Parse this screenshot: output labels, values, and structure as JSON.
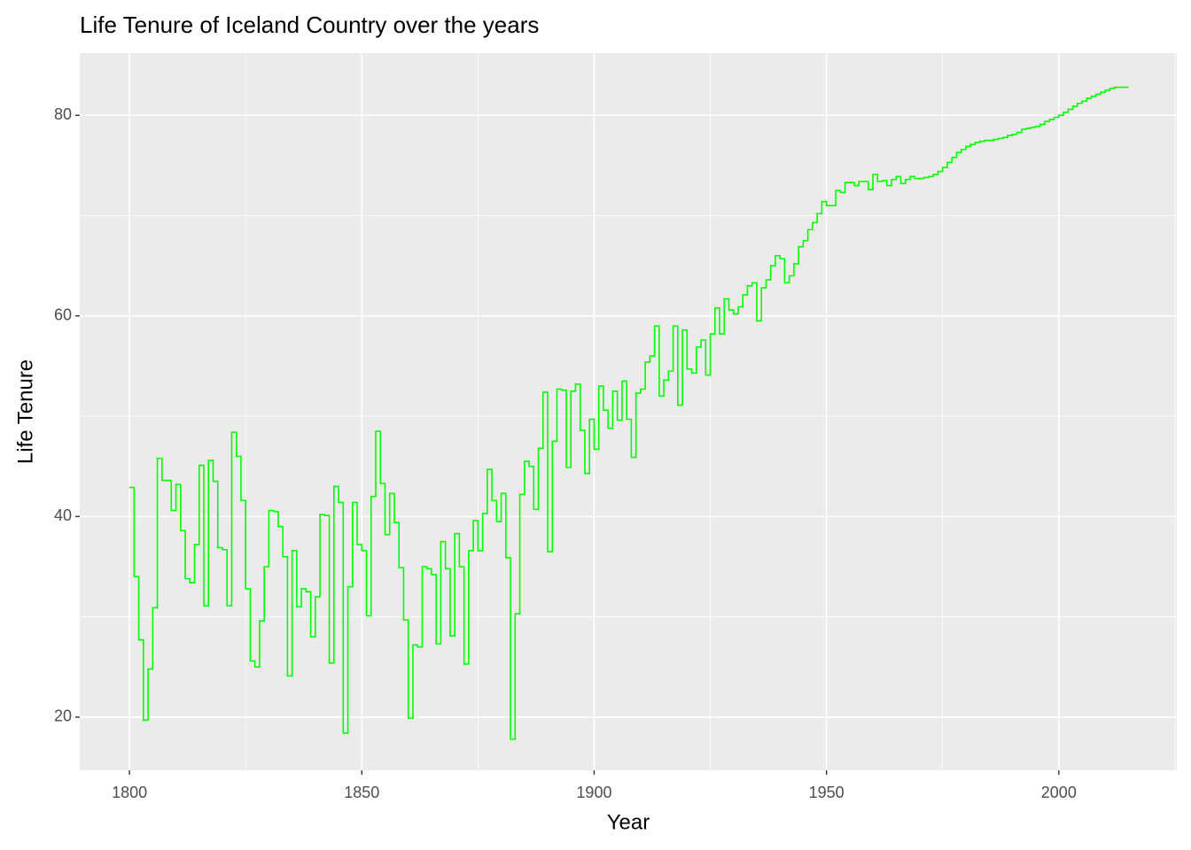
{
  "chart_data": {
    "type": "step",
    "title": "Life Tenure of Iceland Country over the years",
    "x_label": "Year",
    "y_label": "Life Tenure",
    "x": [
      1800,
      1801,
      1802,
      1803,
      1804,
      1805,
      1806,
      1807,
      1808,
      1809,
      1810,
      1811,
      1812,
      1813,
      1814,
      1815,
      1816,
      1817,
      1818,
      1819,
      1820,
      1821,
      1822,
      1823,
      1824,
      1825,
      1826,
      1827,
      1828,
      1829,
      1830,
      1831,
      1832,
      1833,
      1834,
      1835,
      1836,
      1837,
      1838,
      1839,
      1840,
      1841,
      1842,
      1843,
      1844,
      1845,
      1846,
      1847,
      1848,
      1849,
      1850,
      1851,
      1852,
      1853,
      1854,
      1855,
      1856,
      1857,
      1858,
      1859,
      1860,
      1861,
      1862,
      1863,
      1864,
      1865,
      1866,
      1867,
      1868,
      1869,
      1870,
      1871,
      1872,
      1873,
      1874,
      1875,
      1876,
      1877,
      1878,
      1879,
      1880,
      1881,
      1882,
      1883,
      1884,
      1885,
      1886,
      1887,
      1888,
      1889,
      1890,
      1891,
      1892,
      1893,
      1894,
      1895,
      1896,
      1897,
      1898,
      1899,
      1900,
      1901,
      1902,
      1903,
      1904,
      1905,
      1906,
      1907,
      1908,
      1909,
      1910,
      1911,
      1912,
      1913,
      1914,
      1915,
      1916,
      1917,
      1918,
      1919,
      1920,
      1921,
      1922,
      1923,
      1924,
      1925,
      1926,
      1927,
      1928,
      1929,
      1930,
      1931,
      1932,
      1933,
      1934,
      1935,
      1936,
      1937,
      1938,
      1939,
      1940,
      1941,
      1942,
      1943,
      1944,
      1945,
      1946,
      1947,
      1948,
      1949,
      1950,
      1951,
      1952,
      1953,
      1954,
      1955,
      1956,
      1957,
      1958,
      1959,
      1960,
      1961,
      1962,
      1963,
      1964,
      1965,
      1966,
      1967,
      1968,
      1969,
      1970,
      1971,
      1972,
      1973,
      1974,
      1975,
      1976,
      1977,
      1978,
      1979,
      1980,
      1981,
      1982,
      1983,
      1984,
      1985,
      1986,
      1987,
      1988,
      1989,
      1990,
      1991,
      1992,
      1993,
      1994,
      1995,
      1996,
      1997,
      1998,
      1999,
      2000,
      2001,
      2002,
      2003,
      2004,
      2005,
      2006,
      2007,
      2008,
      2009,
      2010,
      2011,
      2012,
      2013,
      2014,
      2015
    ],
    "series": [
      {
        "color": "#00ff00",
        "values": [
          42.9,
          34,
          27.7,
          19.7,
          24.8,
          30.9,
          45.8,
          43.6,
          43.6,
          40.6,
          43.2,
          38.6,
          33.8,
          33.4,
          37.2,
          45.1,
          31.1,
          45.6,
          43.5,
          36.9,
          36.7,
          31.1,
          48.4,
          46,
          41.6,
          32.8,
          25.6,
          25,
          29.6,
          35,
          40.6,
          40.5,
          39,
          36,
          24.1,
          36.6,
          31,
          32.8,
          32.5,
          28,
          32,
          40.2,
          40.1,
          25.4,
          43,
          41.4,
          18.4,
          33,
          41.4,
          37.2,
          36.6,
          30.1,
          42,
          48.5,
          43.3,
          38.2,
          42.3,
          39.4,
          34.9,
          29.7,
          19.9,
          27.2,
          27,
          35,
          34.8,
          34.2,
          27.3,
          37.5,
          34.8,
          28.1,
          38.3,
          35,
          25.3,
          36.6,
          39.6,
          36.6,
          40.3,
          44.7,
          41.6,
          39.5,
          42.3,
          35.9,
          17.8,
          30.3,
          42.2,
          45.5,
          45,
          40.7,
          46.8,
          52.4,
          36.5,
          47.5,
          52.7,
          52.6,
          44.9,
          52.5,
          53.2,
          48.6,
          44.3,
          49.7,
          46.7,
          53,
          50.6,
          48.8,
          52.5,
          49.6,
          53.5,
          49.7,
          45.9,
          52.3,
          52.7,
          55.4,
          56,
          59,
          52,
          53.6,
          54.5,
          59,
          51.1,
          58.6,
          54.7,
          54.3,
          56.9,
          57.6,
          54.1,
          58.2,
          60.8,
          58.2,
          61.7,
          60.6,
          60.2,
          60.9,
          62.1,
          63,
          63.3,
          59.5,
          62.8,
          63.6,
          65,
          66,
          65.7,
          63.3,
          64,
          65.2,
          66.9,
          67.5,
          68.6,
          69.3,
          70.2,
          71.4,
          71,
          71,
          72.5,
          72.3,
          73.3,
          73.3,
          73,
          73.4,
          73.4,
          72.6,
          74.1,
          73.4,
          73.5,
          73,
          73.6,
          73.9,
          73.2,
          73.6,
          73.9,
          73.7,
          73.7,
          73.8,
          73.9,
          74.1,
          74.4,
          74.8,
          75.3,
          75.8,
          76.3,
          76.6,
          76.9,
          77.1,
          77.3,
          77.4,
          77.5,
          77.5,
          77.6,
          77.7,
          77.8,
          78,
          78.1,
          78.3,
          78.6,
          78.7,
          78.8,
          78.9,
          79.1,
          79.4,
          79.6,
          79.8,
          80,
          80.3,
          80.6,
          80.9,
          81.2,
          81.4,
          81.7,
          81.9,
          82.1,
          82.3,
          82.5,
          82.7,
          82.8,
          82.8,
          82.8,
          82.8
        ]
      }
    ],
    "xlim": [
      1789.3,
      2025.4
    ],
    "ylim": [
      14.7,
      86.2
    ],
    "xticks": [
      1800,
      1850,
      1900,
      1950,
      2000
    ],
    "yticks": [
      20,
      40,
      60,
      80
    ],
    "grid": true
  }
}
